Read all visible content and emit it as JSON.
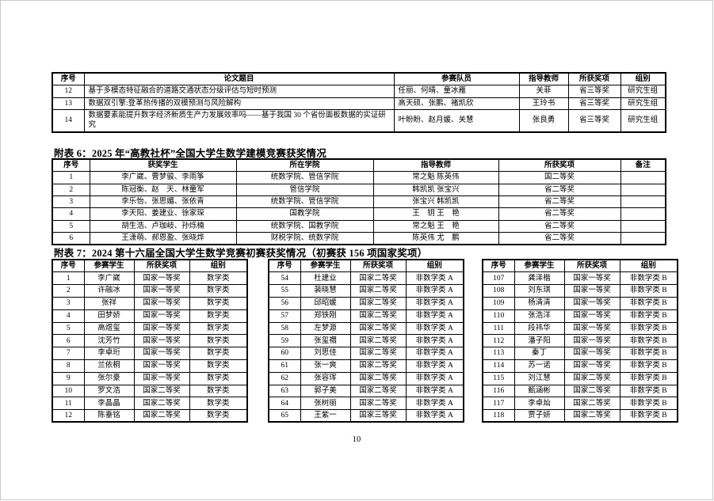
{
  "page": {
    "number": "10"
  },
  "table_top": {
    "headers": [
      "序号",
      "论文题目",
      "参赛队员",
      "指导教师",
      "所获奖项",
      "组别"
    ],
    "rows": [
      [
        "12",
        "基于多模态特征融合的道路交通状态分级评估与短时预测",
        "任丽、何晴、童冰雁",
        "关菲",
        "省三等奖",
        "研究生组"
      ],
      [
        "13",
        "数据双引擎:登革热传播的双模预测与风险解构",
        "高天硕、张鹏、褚凯欣",
        "王玲书",
        "省三等奖",
        "研究生组"
      ],
      [
        "14",
        "数据要素能提升数字经济新质生产力发展效率吗——基于我国 30 个省份面板数据的实证研究",
        "叶盼盼、赵月媛、关慧",
        "张良勇",
        "省三等奖",
        "研究生组"
      ]
    ]
  },
  "table6": {
    "title": "附表 6：2025 年“高教社杯”全国大学生数学建模竞赛获奖情况",
    "headers": [
      "序号",
      "获奖学生",
      "所在学院",
      "指导教师",
      "所获奖项",
      "备注"
    ],
    "rows": [
      [
        "1",
        "李广崴、曹梦骏、李雨筝",
        "统数学院、管信学院",
        "常之魁 陈英伟",
        "国二等奖",
        ""
      ],
      [
        "2",
        "陈冠衡、赵　天、林童军",
        "管信学院",
        "韩凯凯 张宝兴",
        "省二等奖",
        ""
      ],
      [
        "3",
        "李乐怡、张思媚、张依青",
        "统数学院、管信学院",
        "张宝兴 韩凯凯",
        "省二等奖",
        ""
      ],
      [
        "4",
        "李天阳、姜建业、徐家琛",
        "国教学院",
        "王　钥 王　艳",
        "省二等奖",
        ""
      ],
      [
        "5",
        "胡生浩、卢珈岐、孙烁楠",
        "统数学院、国教学院",
        "常之魁 王　艳",
        "省二等奖",
        ""
      ],
      [
        "6",
        "王潇萌、郝恩盈、张晓烨",
        "财税学院、统数学院",
        "陈英伟 尤　鹏",
        "省二等奖",
        ""
      ]
    ]
  },
  "table7": {
    "title": "附表 7：2024 第十六届全国大学生数学竞赛初赛获奖情况（初赛获 156 项国家奖项）",
    "headers": [
      "序号",
      "参赛学生",
      "所获奖项",
      "组别"
    ],
    "left_rows": [
      [
        "1",
        "李广崴",
        "国家一等奖",
        "数学类"
      ],
      [
        "2",
        "许融冰",
        "国家一等奖",
        "数学类"
      ],
      [
        "3",
        "张祥",
        "国家一等奖",
        "数学类"
      ],
      [
        "4",
        "田梦娇",
        "国家一等奖",
        "数学类"
      ],
      [
        "5",
        "高煜玺",
        "国家一等奖",
        "数学类"
      ],
      [
        "6",
        "沈芳竹",
        "国家一等奖",
        "数学类"
      ],
      [
        "7",
        "李卓珩",
        "国家一等奖",
        "数学类"
      ],
      [
        "8",
        "兰依桐",
        "国家一等奖",
        "数学类"
      ],
      [
        "9",
        "张尔豪",
        "国家一等奖",
        "数学类"
      ],
      [
        "10",
        "罗文浩",
        "国家二等奖",
        "数学类"
      ],
      [
        "11",
        "李晶晶",
        "国家二等奖",
        "数学类"
      ],
      [
        "12",
        "陈垂铭",
        "国家二等奖",
        "数学类"
      ]
    ],
    "middle_rows": [
      [
        "54",
        "杜建业",
        "国家二等奖",
        "非数学类 A"
      ],
      [
        "55",
        "裴晓慧",
        "国家二等奖",
        "非数学类 A"
      ],
      [
        "56",
        "邱昭媛",
        "国家二等奖",
        "非数学类 A"
      ],
      [
        "57",
        "郑铁刚",
        "国家二等奖",
        "非数学类 A"
      ],
      [
        "58",
        "左梦源",
        "国家二等奖",
        "非数学类 A"
      ],
      [
        "59",
        "张玺禤",
        "国家二等奖",
        "非数学类 A"
      ],
      [
        "60",
        "刘思佳",
        "国家二等奖",
        "非数学类 A"
      ],
      [
        "61",
        "张一爽",
        "国家二等奖",
        "非数学类 A"
      ],
      [
        "62",
        "张容珲",
        "国家二等奖",
        "非数学类 A"
      ],
      [
        "63",
        "郭子美",
        "国家二等奖",
        "非数学类 A"
      ],
      [
        "64",
        "张树丽",
        "国家二等奖",
        "非数学类 A"
      ],
      [
        "65",
        "王紫一",
        "国家三等奖",
        "非数学类 A"
      ]
    ],
    "right_rows": [
      [
        "107",
        "龚泽楷",
        "国家一等奖",
        "非数学类 B"
      ],
      [
        "108",
        "刘东琪",
        "国家一等奖",
        "非数学类 B"
      ],
      [
        "109",
        "杨清清",
        "国家一等奖",
        "非数学类 B"
      ],
      [
        "110",
        "张浩洋",
        "国家一等奖",
        "非数学类 B"
      ],
      [
        "111",
        "段祎华",
        "国家一等奖",
        "非数学类 B"
      ],
      [
        "112",
        "潘子阳",
        "国家一等奖",
        "非数学类 B"
      ],
      [
        "113",
        "秦丁",
        "国家一等奖",
        "非数学类 B"
      ],
      [
        "114",
        "苏一诺",
        "国家一等奖",
        "非数学类 B"
      ],
      [
        "115",
        "刘江慧",
        "国家二等奖",
        "非数学类 B"
      ],
      [
        "116",
        "甄涵彬",
        "国家二等奖",
        "非数学类 B"
      ],
      [
        "117",
        "李卓灿",
        "国家二等奖",
        "非数学类 B"
      ],
      [
        "118",
        "贾子妍",
        "国家二等奖",
        "非数学类 B"
      ]
    ]
  }
}
